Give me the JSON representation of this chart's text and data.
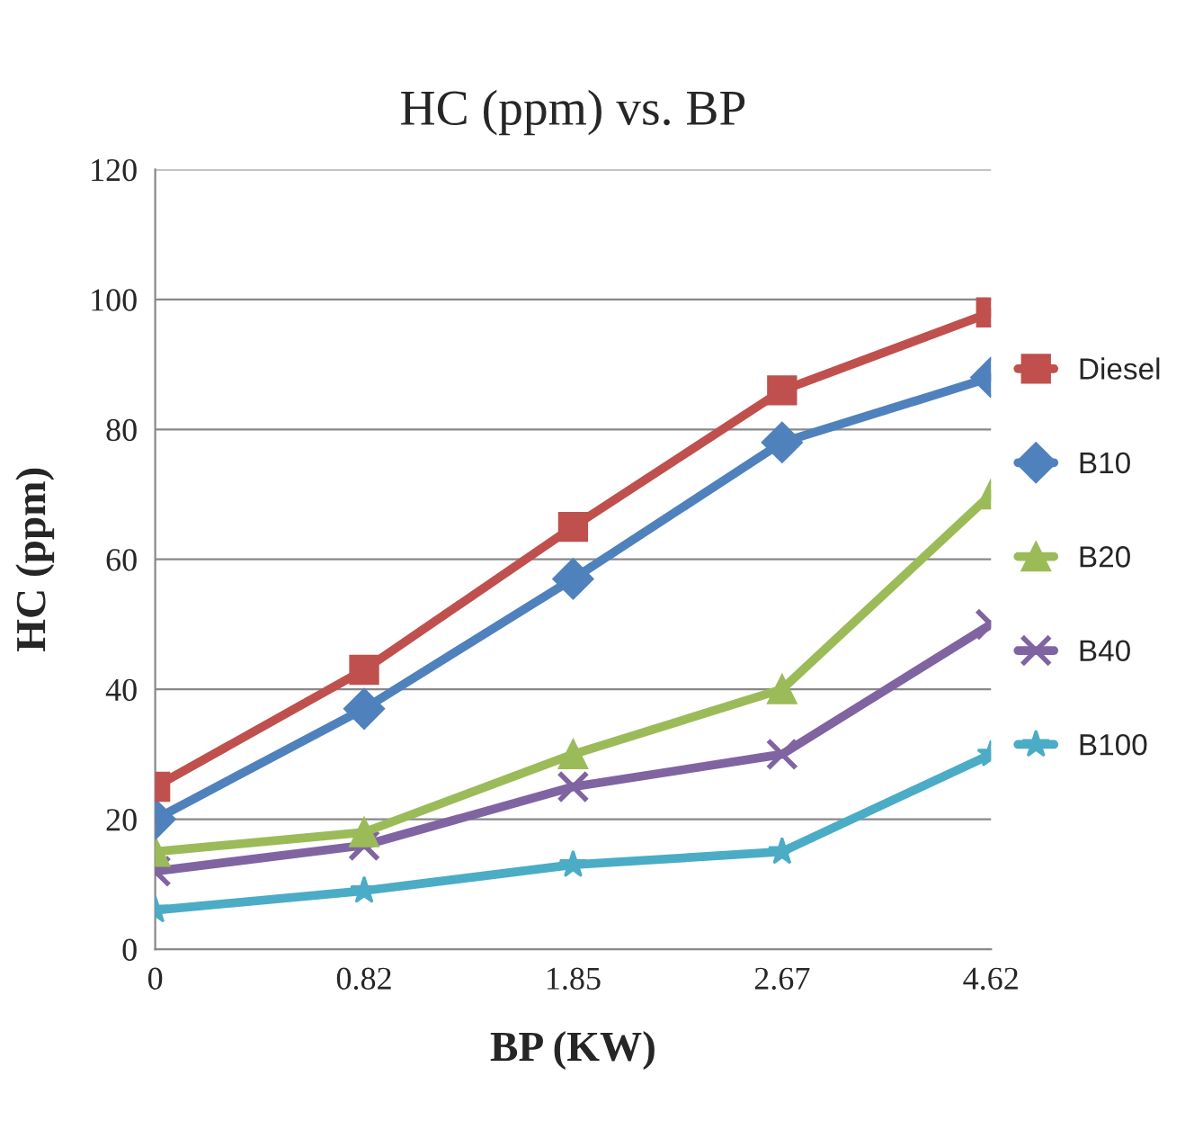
{
  "chart_data": {
    "type": "line",
    "title": "HC (ppm) vs. BP",
    "xlabel": "BP (KW)",
    "ylabel": "HC (ppm)",
    "categories": [
      "0",
      "0.82",
      "1.85",
      "2.67",
      "4.62"
    ],
    "series": [
      {
        "name": "Diesel",
        "color": "#c0504d",
        "marker": "square",
        "values": [
          25,
          43,
          65,
          86,
          98
        ]
      },
      {
        "name": "B10",
        "color": "#4f81bd",
        "marker": "diamond",
        "values": [
          20,
          37,
          57,
          78,
          88
        ]
      },
      {
        "name": "B20",
        "color": "#9bbb59",
        "marker": "triangle",
        "values": [
          15,
          18,
          30,
          40,
          70
        ]
      },
      {
        "name": "B40",
        "color": "#8064a2",
        "marker": "cross",
        "values": [
          12,
          16,
          25,
          30,
          50
        ]
      },
      {
        "name": "B100",
        "color": "#4bacc6",
        "marker": "star",
        "values": [
          6,
          9,
          13,
          15,
          30
        ]
      }
    ],
    "ylim": [
      0,
      120
    ],
    "yticks": [
      0,
      20,
      40,
      60,
      80,
      100,
      120
    ],
    "grid": "y",
    "legend": "right",
    "line_style": "solid"
  }
}
